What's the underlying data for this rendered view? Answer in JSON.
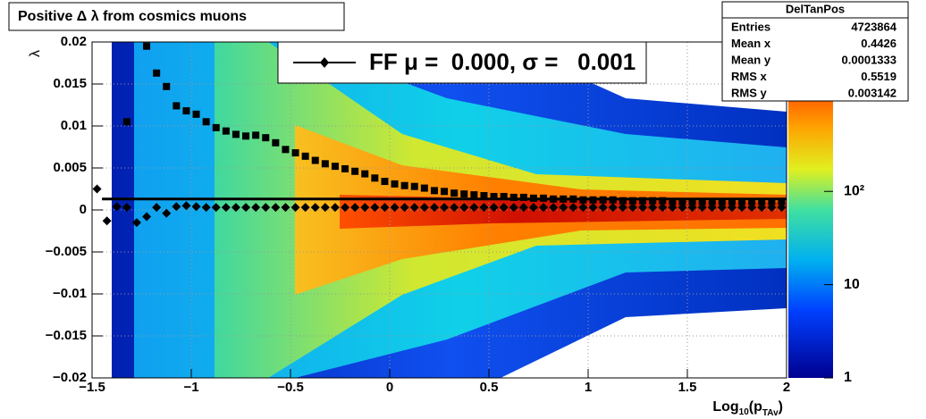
{
  "chart_data": {
    "type": "profile-heatmap",
    "title": "Positive Δ λ from cosmics muons",
    "xlabel": [
      "Log",
      "10",
      "(p",
      "TAv",
      ")"
    ],
    "ylabel": "λ",
    "xlim": [
      -1.5,
      2
    ],
    "ylim": [
      -0.02,
      0.02
    ],
    "xticks": [
      {
        "value": -1.5,
        "label": "−1.5"
      },
      {
        "value": -1,
        "label": "−1"
      },
      {
        "value": -0.5,
        "label": "−0.5"
      },
      0,
      0.5,
      1,
      1.5,
      2
    ],
    "yticks": [
      {
        "value": -0.02,
        "label": "−0.02"
      },
      {
        "value": -0.015,
        "label": "−0.015"
      },
      {
        "value": -0.01,
        "label": "−0.01"
      },
      {
        "value": -0.005,
        "label": "−0.005"
      },
      0,
      0.005,
      0.01,
      0.015,
      0.02
    ],
    "grid": true,
    "zlog": true,
    "zlim": [
      1,
      4000
    ],
    "zticks": [
      1,
      10,
      {
        "value": 100,
        "label": "10²"
      }
    ],
    "x": [
      -1.475,
      -1.425,
      -1.375,
      -1.325,
      -1.275,
      -1.225,
      -1.175,
      -1.125,
      -1.075,
      -1.025,
      -0.975,
      -0.925,
      -0.875,
      -0.825,
      -0.775,
      -0.725,
      -0.675,
      -0.625,
      -0.575,
      -0.525,
      -0.475,
      -0.425,
      -0.375,
      -0.325,
      -0.275,
      -0.225,
      -0.175,
      -0.125,
      -0.075,
      -0.025,
      0.025,
      0.075,
      0.125,
      0.175,
      0.225,
      0.275,
      0.325,
      0.375,
      0.425,
      0.475,
      0.525,
      0.575,
      0.625,
      0.675,
      0.725,
      0.775,
      0.825,
      0.875,
      0.925,
      0.975,
      1.025,
      1.075,
      1.125,
      1.175,
      1.225,
      1.275,
      1.325,
      1.375,
      1.425,
      1.475,
      1.525,
      1.575,
      1.625,
      1.675,
      1.725,
      1.775,
      1.825,
      1.875,
      1.925,
      1.975
    ],
    "series": [
      {
        "name": "FF μ =  0.000, σ =   0.001",
        "marker": "diamond",
        "color": "#000000",
        "values": [
          0.0025,
          -0.0013,
          0.0004,
          0.0003,
          -0.0015,
          -0.0008,
          0.0003,
          -0.0004,
          0.0004,
          0.0005,
          0.0004,
          0.0003,
          0.0003,
          0.0003,
          0.0003,
          0.0003,
          0.0003,
          0.0003,
          0.0003,
          0.0003,
          0.0003,
          0.0003,
          0.0003,
          0.0003,
          0.0003,
          0.0003,
          0.0003,
          0.0003,
          0.0003,
          0.0003,
          0.0003,
          0.0003,
          0.0003,
          0.0003,
          0.0003,
          0.0003,
          0.0003,
          0.0003,
          0.0003,
          0.0003,
          0.0003,
          0.0003,
          0.0003,
          0.0003,
          0.0003,
          0.0003,
          0.0003,
          0.0003,
          0.0003,
          0.0003,
          0.0003,
          0.0003,
          0.0003,
          0.0003,
          0.0003,
          0.0003,
          0.0003,
          0.0003,
          0.0003,
          0.0003,
          0.0003,
          0.0003,
          0.0003,
          0.0003,
          0.0003,
          0.0003,
          0.0003,
          0.0003,
          0.0003,
          0.0003
        ]
      },
      {
        "marker": "square",
        "color": "#000000",
        "values": [
          null,
          null,
          null,
          0.0105,
          null,
          0.0195,
          0.0163,
          0.0147,
          0.0124,
          0.0118,
          0.0114,
          0.0105,
          0.0098,
          0.0094,
          0.009,
          0.0088,
          0.0089,
          0.0086,
          0.008,
          0.0072,
          0.0068,
          0.0064,
          0.0059,
          0.0055,
          0.0052,
          0.0049,
          0.0046,
          0.0043,
          0.0038,
          0.0034,
          0.0031,
          0.0029,
          0.0028,
          0.0026,
          0.0023,
          0.0022,
          0.002,
          0.0019,
          0.0018,
          0.0017,
          0.0016,
          0.0016,
          0.0015,
          0.0015,
          0.0014,
          0.0014,
          0.0013,
          0.0013,
          0.0013,
          0.0012,
          0.0012,
          0.0012,
          0.0012,
          0.0011,
          0.0011,
          0.0011,
          0.0011,
          0.0011,
          0.001,
          0.001,
          0.001,
          0.001,
          0.001,
          0.001,
          0.001,
          0.001,
          0.001,
          0.001,
          0.001,
          0.001
        ]
      },
      {
        "marker": "line",
        "color": "#000000",
        "x": [
          -1.45,
          2
        ],
        "values": [
          0.0013,
          0.0013
        ]
      }
    ],
    "stats": {
      "title": "DelTanPos",
      "rows": [
        [
          "Entries",
          "4723864"
        ],
        [
          "Mean x",
          "0.4426"
        ],
        [
          "Mean y",
          "0.0001333"
        ],
        [
          "RMS x",
          "0.5519"
        ],
        [
          "RMS y",
          "0.003142"
        ]
      ]
    }
  }
}
